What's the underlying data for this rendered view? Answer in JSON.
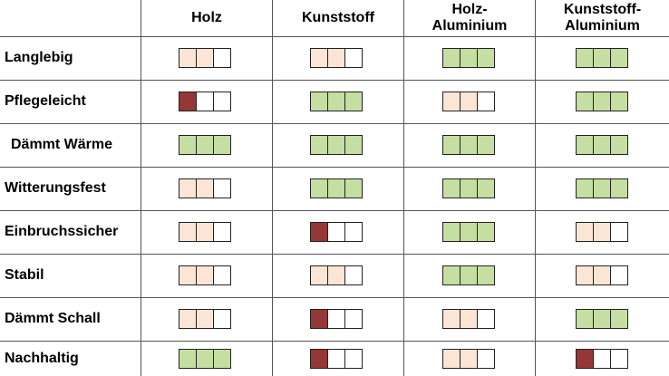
{
  "colors": {
    "good": "#c5dea2",
    "medium": "#fde5d6",
    "bad": "#953735",
    "empty": "#ffffff"
  },
  "columns": [
    "Holz",
    "Kunststoff",
    "Holz-\nAluminium",
    "Kunststoff-\nAluminium"
  ],
  "rows": [
    {
      "label": "Langlebig",
      "ratings": [
        "medium",
        "medium",
        "good",
        "good"
      ]
    },
    {
      "label": "Pflegeleicht",
      "ratings": [
        "bad",
        "good",
        "medium",
        "good"
      ]
    },
    {
      "label": "Dämmt Wärme",
      "ratings": [
        "good",
        "good",
        "good",
        "good"
      ]
    },
    {
      "label": "Witterungsfest",
      "ratings": [
        "medium",
        "good",
        "good",
        "good"
      ]
    },
    {
      "label": "Einbruchssicher",
      "ratings": [
        "medium",
        "bad",
        "good",
        "medium"
      ]
    },
    {
      "label": "Stabil",
      "ratings": [
        "medium",
        "medium",
        "good",
        "medium"
      ]
    },
    {
      "label": "Dämmt Schall",
      "ratings": [
        "medium",
        "bad",
        "medium",
        "good"
      ]
    },
    {
      "label": "Nachhaltig",
      "ratings": [
        "good",
        "bad",
        "medium",
        "bad"
      ]
    }
  ]
}
